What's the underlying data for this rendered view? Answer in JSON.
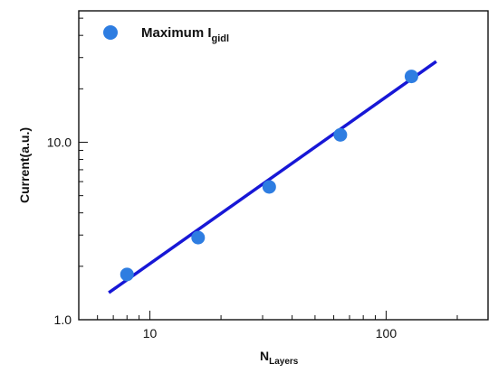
{
  "chart_data": {
    "type": "scatter",
    "xscale": "log",
    "yscale": "log",
    "xlim": [
      5,
      270
    ],
    "ylim": [
      1.0,
      55
    ],
    "xticks": [
      10,
      100
    ],
    "xtick_labels": [
      "10",
      "100"
    ],
    "yticks": [
      1.0,
      10.0
    ],
    "ytick_labels": [
      "1.0",
      "10.0"
    ],
    "xlabel": {
      "main": "N",
      "sub": "Layers"
    },
    "ylabel": "Current(a.u.)",
    "legend": {
      "placement": "top-left",
      "label_main": "Maximum I",
      "label_sub": "gidl"
    },
    "grid": false,
    "series": [
      {
        "name": "Maximum Igidl",
        "marker": "circle",
        "color": "#2e7de1",
        "x": [
          8,
          16,
          32,
          64,
          128
        ],
        "y": [
          1.8,
          2.9,
          5.6,
          11.0,
          23.5
        ]
      }
    ],
    "fit_line": {
      "color": "#1717d6",
      "x": [
        6.7,
        163
      ],
      "y": [
        1.42,
        28.5
      ]
    }
  }
}
